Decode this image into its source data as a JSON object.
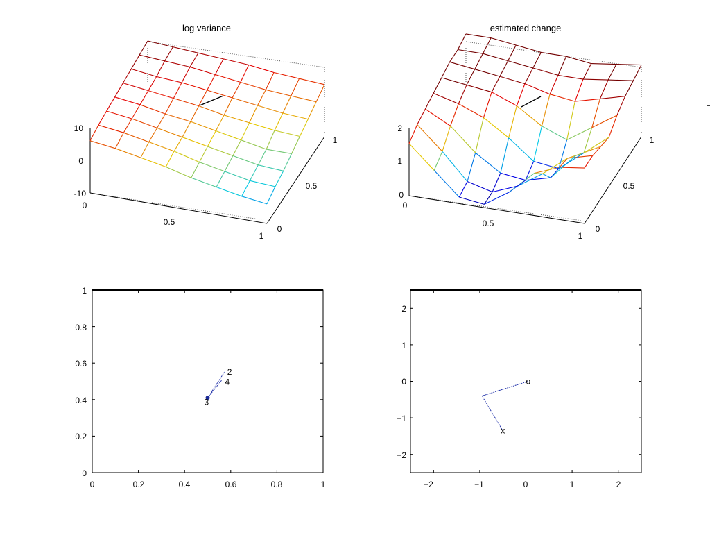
{
  "chart_data": [
    {
      "type": "surface",
      "title": "log variance",
      "x_ticks": [
        "0",
        "0.5",
        "1"
      ],
      "y_ticks": [
        "0",
        "0.5",
        "1"
      ],
      "z_ticks": [
        "-10",
        "0",
        "10"
      ],
      "xlim": [
        0,
        1
      ],
      "ylim": [
        0,
        1
      ],
      "zlim": [
        -10,
        10
      ],
      "grid_size": 8,
      "z": [
        [
          6,
          5,
          3.5,
          2,
          0,
          -1.5,
          -3,
          -4
        ],
        [
          7,
          6,
          4.5,
          3,
          1,
          -0.5,
          -2,
          -2.5
        ],
        [
          7.5,
          6.5,
          5,
          3.5,
          2,
          0.5,
          -1,
          -1.5
        ],
        [
          8,
          7,
          5.5,
          4.5,
          3,
          1.5,
          0,
          0
        ],
        [
          8.5,
          7.5,
          6.5,
          5.5,
          4,
          3,
          2,
          1.5
        ],
        [
          9,
          8,
          7.5,
          6.5,
          5.5,
          4.5,
          3.5,
          3
        ],
        [
          9.5,
          9,
          8.5,
          7.5,
          6.5,
          5.5,
          5,
          4.5
        ],
        [
          10,
          9.5,
          9,
          8.5,
          8,
          7,
          6.5,
          6
        ]
      ],
      "grid": false
    },
    {
      "type": "surface",
      "title": "estimated change",
      "x_ticks": [
        "0",
        "0.5",
        "1"
      ],
      "y_ticks": [
        "0",
        "0.5",
        "1"
      ],
      "z_ticks": [
        "0",
        "1",
        "2"
      ],
      "xlim": [
        0,
        1
      ],
      "ylim": [
        0,
        1
      ],
      "zlim": [
        0,
        2
      ],
      "grid_size": 8,
      "z": [
        [
          1.6,
          0.9,
          0.2,
          0.1,
          0.6,
          1.3,
          1.6,
          1.7
        ],
        [
          1.8,
          1.1,
          0.3,
          0.1,
          0.4,
          0.9,
          1.5,
          1.7
        ],
        [
          1.9,
          1.5,
          0.8,
          0.3,
          0.2,
          0.4,
          1.2,
          1.6
        ],
        [
          2.0,
          1.8,
          1.5,
          1.0,
          0.4,
          0.3,
          0.9,
          1.5
        ],
        [
          2.1,
          2.0,
          1.9,
          1.6,
          1.1,
          0.8,
          1.3,
          1.8
        ],
        [
          2.2,
          2.1,
          2.0,
          1.9,
          1.7,
          1.6,
          1.8,
          2.0
        ],
        [
          2.2,
          2.2,
          2.1,
          2.0,
          1.9,
          1.9,
          2.0,
          2.1
        ],
        [
          2.3,
          2.3,
          2.2,
          2.1,
          2.1,
          2.0,
          2.1,
          2.2
        ]
      ],
      "grid": false
    },
    {
      "type": "line",
      "title": "",
      "xlim": [
        0,
        1
      ],
      "ylim": [
        0,
        1
      ],
      "x_ticks": [
        "0",
        "0.2",
        "0.4",
        "0.6",
        "0.8",
        "1"
      ],
      "y_ticks": [
        "0",
        "0.2",
        "0.4",
        "0.6",
        "0.8",
        "1"
      ],
      "series": [
        {
          "x": [
            0.5,
            0.575
          ],
          "y": [
            0.41,
            0.555
          ]
        },
        {
          "x": [
            0.5,
            0.56
          ],
          "y": [
            0.41,
            0.505
          ]
        }
      ],
      "annotations": [
        {
          "text": "2",
          "x": 0.585,
          "y": 0.555
        },
        {
          "text": "4",
          "x": 0.575,
          "y": 0.5
        },
        {
          "text": "3",
          "x": 0.485,
          "y": 0.39
        }
      ],
      "top_line_y": 1,
      "grid": false
    },
    {
      "type": "line",
      "title": "",
      "xlim": [
        -2.5,
        2.5
      ],
      "ylim": [
        -2.5,
        2.5
      ],
      "x_ticks": [
        "−2",
        "−1",
        "0",
        "1",
        "2"
      ],
      "y_ticks": [
        "−2",
        "−1",
        "0",
        "1",
        "2"
      ],
      "series": [
        {
          "x": [
            0.05,
            -0.95,
            -0.5
          ],
          "y": [
            0,
            -0.4,
            -1.35
          ]
        }
      ],
      "markers": [
        {
          "text": "o",
          "x": 0.05,
          "y": 0
        },
        {
          "text": "x",
          "x": -0.5,
          "y": -1.35
        }
      ],
      "grid": false
    }
  ]
}
